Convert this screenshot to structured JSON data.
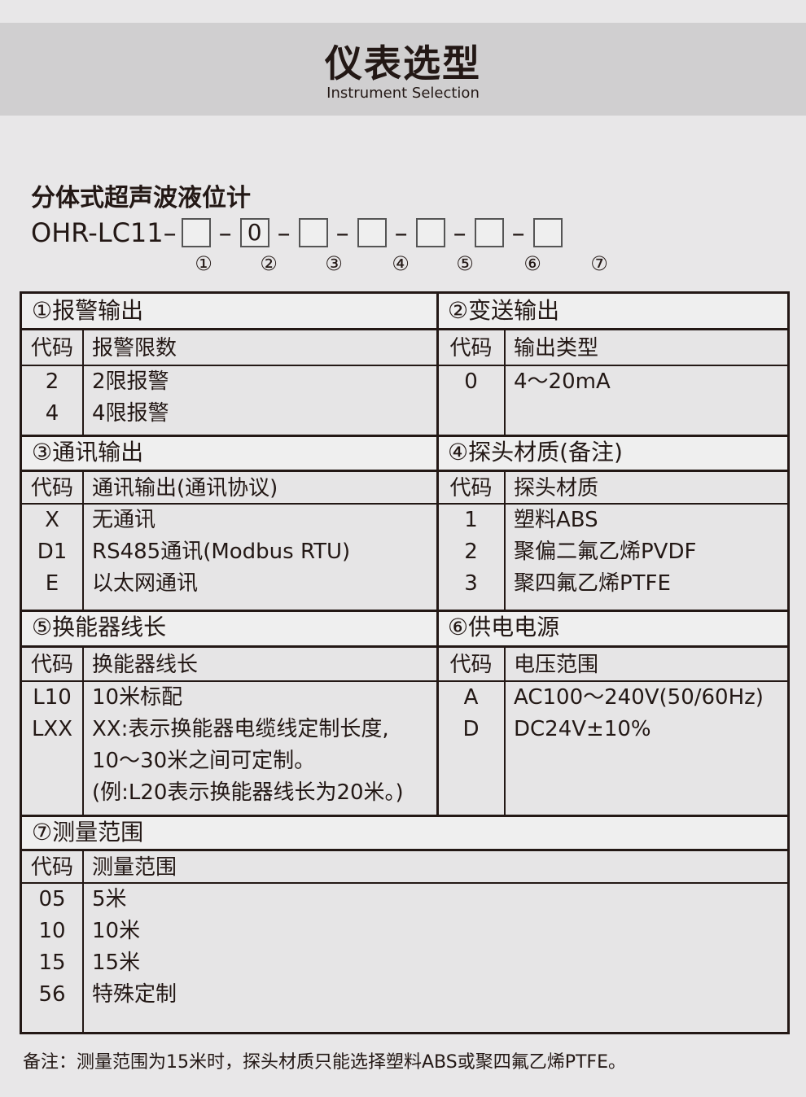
{
  "header": {
    "title": "仪表选型",
    "subtitle": "Instrument Selection"
  },
  "product": {
    "name": "分体式超声波液位计",
    "model_prefix": "OHR-LC11–",
    "slots": [
      "",
      "0",
      "",
      "",
      "",
      "",
      ""
    ],
    "slot_numbers": [
      "①",
      "②",
      "③",
      "④",
      "⑤",
      "⑥",
      "⑦"
    ]
  },
  "sections": [
    {
      "title": "①报警输出",
      "code_header": "代码",
      "desc_header": "报警限数",
      "rows": [
        {
          "code": "2",
          "desc": "2限报警"
        },
        {
          "code": "4",
          "desc": "4限报警"
        }
      ]
    },
    {
      "title": "②变送输出",
      "code_header": "代码",
      "desc_header": "输出类型",
      "rows": [
        {
          "code": "0",
          "desc": "4～20mA"
        }
      ]
    },
    {
      "title": "③通讯输出",
      "code_header": "代码",
      "desc_header": "通讯输出(通讯协议)",
      "rows": [
        {
          "code": "X",
          "desc": "无通讯"
        },
        {
          "code": "D1",
          "desc": "RS485通讯(Modbus RTU)"
        },
        {
          "code": "E",
          "desc": "以太网通讯"
        }
      ]
    },
    {
      "title": "④探头材质(备注)",
      "code_header": "代码",
      "desc_header": "探头材质",
      "rows": [
        {
          "code": "1",
          "desc": "塑料ABS"
        },
        {
          "code": "2",
          "desc": "聚偏二氟乙烯PVDF"
        },
        {
          "code": "3",
          "desc": "聚四氟乙烯PTFE"
        }
      ]
    },
    {
      "title": "⑤换能器线长",
      "code_header": "代码",
      "desc_header": "换能器线长",
      "rows": [
        {
          "code": "L10",
          "desc": "10米标配"
        },
        {
          "code": "LXX",
          "desc": "XX:表示换能器电缆线定制长度,"
        },
        {
          "code": "",
          "desc": "10～30米之间可定制。"
        },
        {
          "code": "",
          "desc": "(例:L20表示换能器线长为20米。)"
        }
      ]
    },
    {
      "title": "⑥供电电源",
      "code_header": "代码",
      "desc_header": "电压范围",
      "rows": [
        {
          "code": "A",
          "desc": "AC100～240V(50/60Hz)"
        },
        {
          "code": "D",
          "desc": "DC24V±10%"
        }
      ]
    },
    {
      "title": "⑦测量范围",
      "code_header": "代码",
      "desc_header": "测量范围",
      "rows": [
        {
          "code": "05",
          "desc": "5米"
        },
        {
          "code": "10",
          "desc": "10米"
        },
        {
          "code": "15",
          "desc": "15米"
        },
        {
          "code": "56",
          "desc": "特殊定制"
        }
      ]
    }
  ],
  "note": "备注：测量范围为15米时，探头材质只能选择塑料ABS或聚四氟乙烯PTFE。"
}
